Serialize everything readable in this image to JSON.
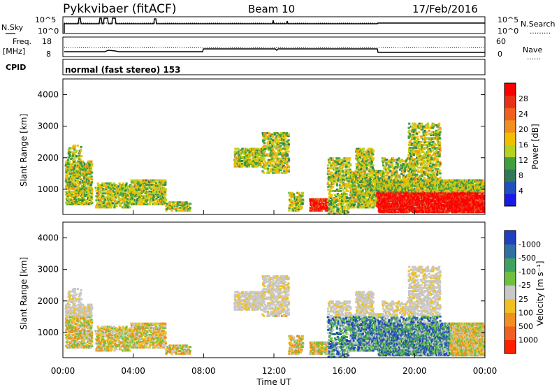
{
  "header": {
    "station": "Pykkvibaer (fitACF)",
    "beam": "Beam 10",
    "date": "17/Feb/2016"
  },
  "nsky_panel": {
    "left_label": "N.Sky",
    "right_label": "N.Search",
    "left_ticks": [
      "10^5",
      "10^0"
    ],
    "right_ticks": [
      "10^5",
      "10^0"
    ]
  },
  "freq_panel": {
    "left_label": "Freq.",
    "left_unit": "[MHz]",
    "right_label": "Nave",
    "left_ticks": [
      "18",
      "8"
    ],
    "right_ticks": [
      "60",
      "0"
    ]
  },
  "cpid_panel": {
    "label": "CPID",
    "mode_text": "normal (fast stereo) 153"
  },
  "chart_data": [
    {
      "type": "heatmap",
      "name": "power",
      "ylabel": "Slant Range [km]",
      "ylim": [
        200,
        4500
      ],
      "yticks": [
        "1000",
        "2000",
        "3000",
        "4000"
      ],
      "colorbar_label": "Power [dB]",
      "colorbar_ticks": [
        "4",
        "8",
        "12",
        "16",
        "20",
        "24",
        "28"
      ],
      "colorscale": [
        "#1a1ae6",
        "#2050c0",
        "#307858",
        "#40a040",
        "#b8d020",
        "#f0c000",
        "#f09020",
        "#f06020",
        "#e83018",
        "#ff0000"
      ]
    },
    {
      "type": "heatmap",
      "name": "velocity",
      "ylabel": "Slant Range [km]",
      "ylim": [
        200,
        4500
      ],
      "yticks": [
        "1000",
        "2000",
        "3000",
        "4000"
      ],
      "colorbar_label": "Velocity [m s⁻¹]",
      "colorbar_ticks": [
        "1000",
        "500",
        "100",
        "25",
        "-25",
        "-100",
        "-500",
        "-1000"
      ],
      "colorscale": [
        "#2040c0",
        "#3070a0",
        "#40a060",
        "#70c040",
        "#c8c8c8",
        "#f0c020",
        "#f09020",
        "#f06020",
        "#ff2000"
      ]
    }
  ],
  "time_axis": {
    "xlabel": "Time UT",
    "ticks": [
      "00:00",
      "04:00",
      "08:00",
      "12:00",
      "16:00",
      "20:00",
      "00:00"
    ]
  },
  "legend_dots": {
    "nsearch": "………",
    "nave": "……"
  }
}
